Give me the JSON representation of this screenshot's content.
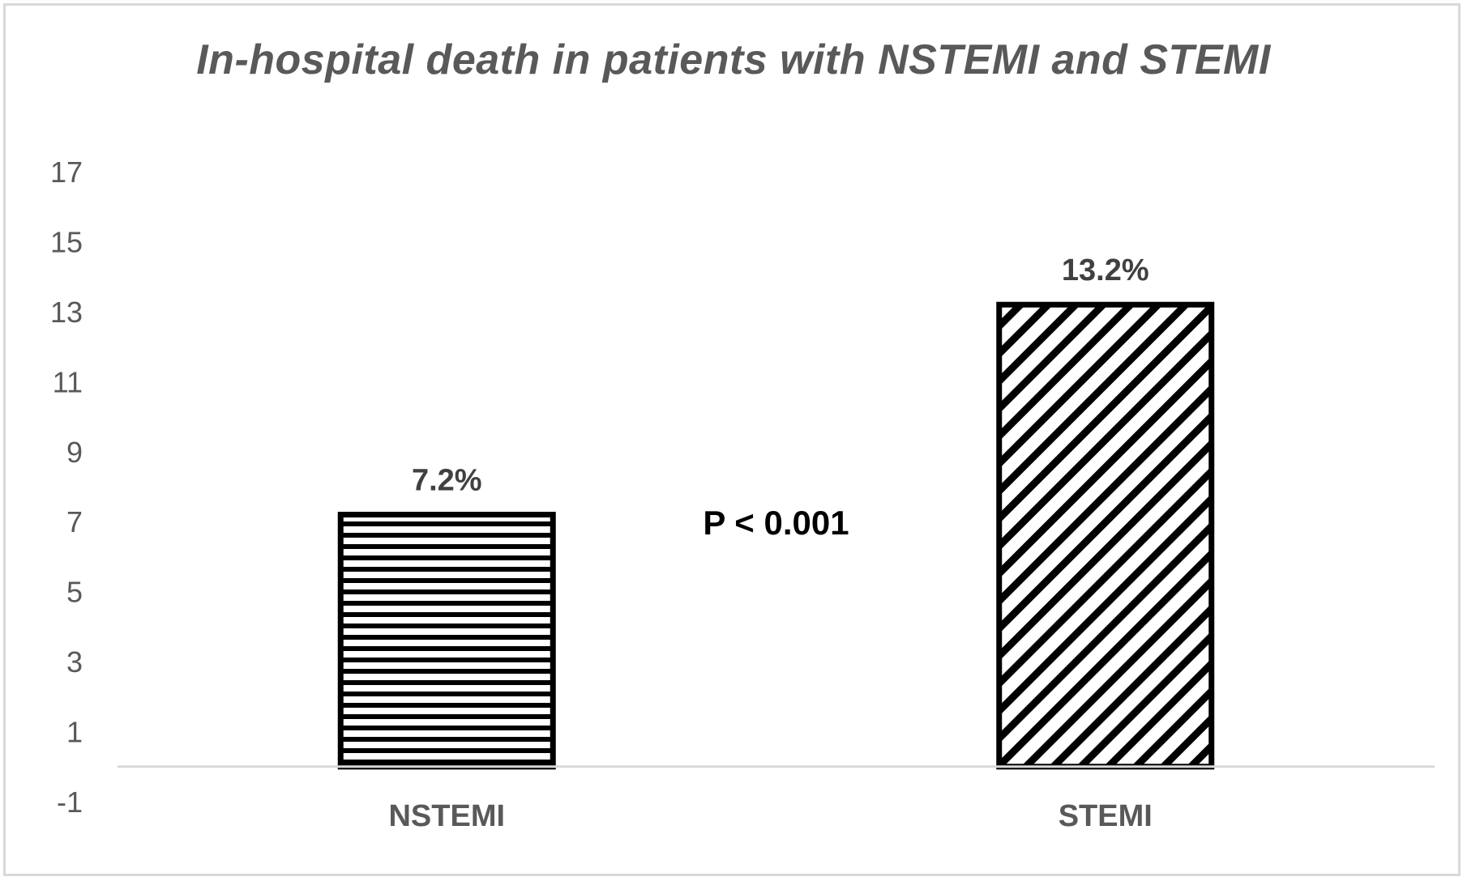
{
  "chart_data": {
    "type": "bar",
    "title": "In-hospital death in patients with NSTEMI and STEMI",
    "categories": [
      "NSTEMI",
      "STEMI"
    ],
    "values": [
      7.2,
      13.2
    ],
    "value_labels": [
      "7.2%",
      "13.2%"
    ],
    "patterns": [
      "horizontal-lines",
      "diagonal-lines"
    ],
    "annotation": "P < 0.001",
    "yticks": [
      -1,
      1,
      3,
      5,
      7,
      9,
      11,
      13,
      15,
      17
    ],
    "ylim": [
      -1,
      17
    ],
    "grid": false,
    "legend": "none",
    "colors": {
      "bar_stroke": "#000000",
      "axis": "#d9d9d9",
      "text": "#595959"
    }
  }
}
